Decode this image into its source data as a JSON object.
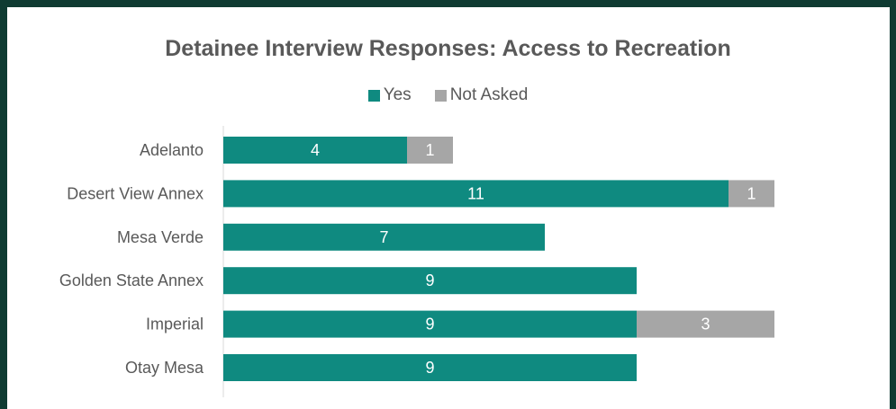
{
  "chart_data": {
    "type": "bar",
    "orientation": "horizontal",
    "stacked": true,
    "title": "Detainee Interview Responses: Access to Recreation",
    "categories": [
      "Adelanto",
      "Desert View Annex",
      "Mesa Verde",
      "Golden State Annex",
      "Imperial",
      "Otay Mesa"
    ],
    "series": [
      {
        "name": "Yes",
        "color": "#0f8a80",
        "values": [
          4,
          11,
          7,
          9,
          9,
          9
        ]
      },
      {
        "name": "Not Asked",
        "color": "#a6a6a6",
        "values": [
          1,
          1,
          0,
          0,
          3,
          0
        ]
      }
    ],
    "xlim": [
      0,
      12
    ],
    "grid": false,
    "legend_position": "top",
    "data_labels": true
  }
}
